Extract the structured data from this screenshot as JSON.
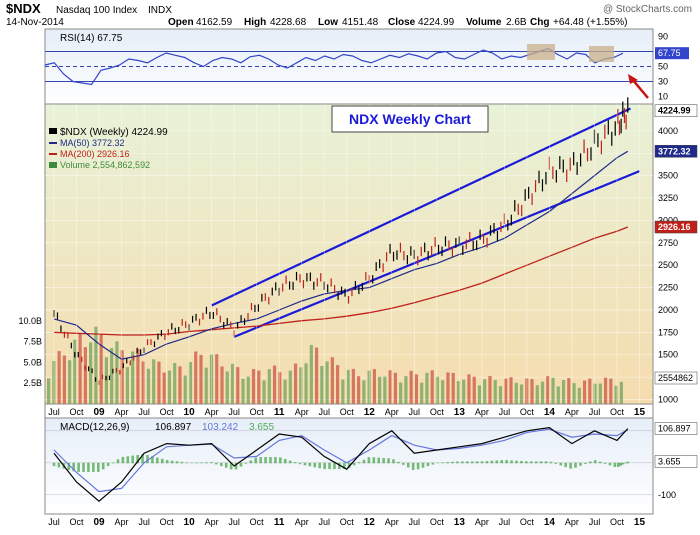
{
  "header": {
    "symbol": "$NDX",
    "name": "Nasdaq 100 Index",
    "exchange": "INDX",
    "date": "14-Nov-2014",
    "open_label": "Open",
    "open": "4162.59",
    "high_label": "High",
    "high": "4228.68",
    "low_label": "Low",
    "low": "4151.48",
    "close_label": "Close",
    "close": "4224.99",
    "volume_label": "Volume",
    "volume": "2.6B",
    "chg_label": "Chg",
    "chg": "+64.48 (+1.55%)",
    "watermark": "@ StockCharts.com"
  },
  "colors": {
    "price": "#000000",
    "ma50": "#1f2a8a",
    "ma200": "#c0201a",
    "volume_up": "#3d8c3d",
    "volume_down": "#c0201a",
    "channel": "#1a1ad9",
    "rsi_line": "#3344cc",
    "macd_line": "#000000",
    "signal_line": "#6677dd",
    "hist": "#55aa55",
    "price_bg_top": "#e8f2d8",
    "price_bg_bottom": "#f4ddb0"
  },
  "chart_data": [
    {
      "type": "line",
      "panel": "rsi",
      "legend": "RSI(14) 67.75",
      "last_value": "67.75",
      "levels": [
        70,
        50,
        30
      ],
      "ticks": [
        "90",
        "70",
        "50",
        "30",
        "10"
      ],
      "ylim": [
        0,
        100
      ],
      "series": [
        {
          "values": [
            52,
            55,
            40,
            30,
            28,
            26,
            45,
            48,
            52,
            60,
            58,
            55,
            62,
            68,
            65,
            62,
            55,
            50,
            58,
            62,
            60,
            55,
            63,
            65,
            60,
            52,
            48,
            55,
            62,
            58,
            64,
            60,
            66,
            64,
            58,
            55,
            60,
            65,
            62,
            67,
            64,
            60,
            68,
            70,
            62,
            60,
            66,
            72,
            68,
            60,
            64,
            62,
            66,
            70,
            74,
            66,
            60,
            68,
            66,
            55,
            60,
            62,
            67.75
          ]
        }
      ]
    },
    {
      "type": "line",
      "panel": "price",
      "title": "NDX Weekly Chart",
      "legend": {
        "price": "$NDX (Weekly) 4224.99",
        "ma50": "MA(50) 3772.32",
        "ma200": "MA(200) 2926.16",
        "volume": "Volume 2,554,862,592"
      },
      "y_ticks": [
        "4000",
        "3750",
        "3500",
        "3250",
        "3000",
        "2750",
        "2500",
        "2250",
        "2000",
        "1750",
        "1500",
        "1250",
        "1000"
      ],
      "ylim": [
        950,
        4300
      ],
      "last_labels": {
        "price": "4224.99",
        "ma50": "3772.32",
        "ma200": "2926.16",
        "volume": "2554862"
      },
      "x_ticks": [
        "Jul",
        "Oct",
        "09",
        "Apr",
        "Jul",
        "Oct",
        "10",
        "Apr",
        "Jul",
        "Oct",
        "11",
        "Apr",
        "Jul",
        "Oct",
        "12",
        "Apr",
        "Jul",
        "Oct",
        "13",
        "Apr",
        "Jul",
        "Oct",
        "14",
        "Apr",
        "Jul",
        "Oct",
        "15"
      ],
      "x": [
        2008.5,
        2008.75,
        2009.0,
        2009.25,
        2009.5,
        2009.75,
        2010.0,
        2010.25,
        2010.5,
        2010.75,
        2011.0,
        2011.25,
        2011.5,
        2011.75,
        2012.0,
        2012.25,
        2012.5,
        2012.75,
        2013.0,
        2013.25,
        2013.5,
        2013.75,
        2014.0,
        2014.25,
        2014.5,
        2014.75,
        2014.87
      ],
      "series": [
        {
          "name": "$NDX",
          "values": [
            1960,
            1500,
            1200,
            1350,
            1580,
            1750,
            1850,
            1980,
            1780,
            2050,
            2250,
            2350,
            2300,
            2150,
            2350,
            2650,
            2600,
            2700,
            2720,
            2780,
            2950,
            3250,
            3550,
            3600,
            3850,
            4050,
            4225
          ]
        },
        {
          "name": "MA(50)",
          "values": [
            1900,
            1830,
            1620,
            1450,
            1500,
            1620,
            1700,
            1790,
            1850,
            1900,
            2000,
            2100,
            2180,
            2220,
            2250,
            2350,
            2450,
            2520,
            2620,
            2700,
            2800,
            2950,
            3100,
            3300,
            3500,
            3700,
            3772
          ]
        },
        {
          "name": "MA(200)",
          "values": [
            1750,
            1740,
            1730,
            1720,
            1720,
            1730,
            1760,
            1780,
            1800,
            1820,
            1850,
            1880,
            1900,
            1930,
            1970,
            2020,
            2080,
            2150,
            2220,
            2300,
            2400,
            2500,
            2600,
            2700,
            2800,
            2880,
            2926
          ]
        }
      ],
      "volume_ticks": [
        "10.0B",
        "7.5B",
        "5.0B",
        "2.5B"
      ],
      "volume_ylim": [
        0,
        12.5
      ],
      "volume_values": [
        4.1,
        6.2,
        7.8,
        6.1,
        5.4,
        4.2,
        3.9,
        5.6,
        4.4,
        3.2,
        3.8,
        3.4,
        6.0,
        4.3,
        3.2,
        3.5,
        3.1,
        3.3,
        3.2,
        2.9,
        2.7,
        2.6,
        2.5,
        2.8,
        2.3,
        2.6,
        2.55
      ],
      "trend_channel": {
        "upper_start": [
          2010.25,
          2050
        ],
        "upper_end": [
          2014.9,
          4250
        ],
        "lower_start": [
          2010.5,
          1700
        ],
        "lower_end": [
          2015.0,
          3550
        ]
      }
    },
    {
      "type": "line",
      "panel": "macd",
      "legend": {
        "label": "MACD(12,26,9)",
        "macd": "106.897",
        "signal": "103.242",
        "hist": "3.655"
      },
      "y_ticks": [
        "100",
        "0",
        "-100"
      ],
      "ylim": [
        -160,
        140
      ],
      "last_labels": {
        "macd": "106.897",
        "hist": "3.655"
      },
      "series": [
        {
          "name": "MACD",
          "values": [
            30,
            -60,
            -120,
            -60,
            30,
            60,
            55,
            60,
            -10,
            40,
            90,
            80,
            20,
            -20,
            60,
            100,
            30,
            40,
            50,
            60,
            80,
            100,
            110,
            60,
            100,
            70,
            107
          ]
        },
        {
          "name": "Signal",
          "values": [
            40,
            -30,
            -90,
            -80,
            0,
            50,
            55,
            58,
            15,
            20,
            70,
            85,
            40,
            0,
            40,
            85,
            55,
            40,
            45,
            55,
            70,
            95,
            105,
            80,
            90,
            85,
            103
          ]
        }
      ]
    }
  ]
}
